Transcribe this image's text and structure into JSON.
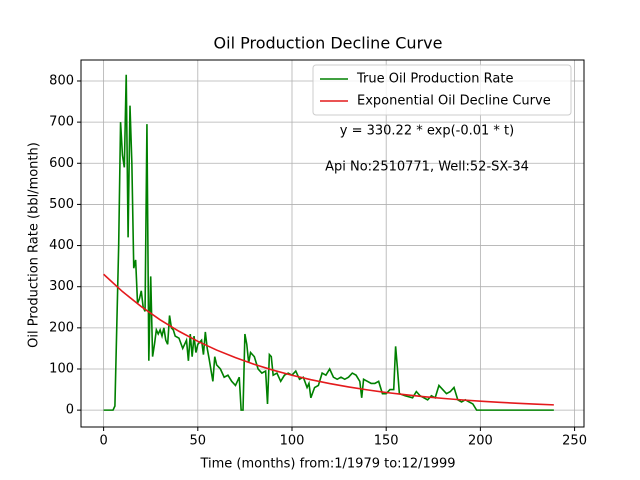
{
  "chart_data": {
    "type": "line",
    "title": "Oil Production Decline Curve",
    "xlabel": "Time (months) from:1/1979 to:12/1999",
    "ylabel": "Oil Production Rate (bbl/month)",
    "annotations": [
      "y = 330.22 * exp(-0.01 * t)",
      "Api No:2510771, Well:52-SX-34"
    ],
    "xlim": [
      -12,
      255
    ],
    "ylim": [
      -41,
      851
    ],
    "xticks": [
      0,
      50,
      100,
      150,
      200,
      250
    ],
    "yticks": [
      0,
      100,
      200,
      300,
      400,
      500,
      600,
      700,
      800
    ],
    "grid": true,
    "legend": "upper right",
    "series": [
      {
        "name": "True Oil Production Rate",
        "color": "#008000",
        "x": [
          0,
          5,
          6,
          8,
          9,
          10,
          11,
          12,
          13,
          14,
          15,
          16,
          17,
          18,
          19,
          20,
          21,
          22,
          23,
          24,
          25,
          26,
          27,
          28,
          29,
          30,
          31,
          32,
          33,
          34,
          35,
          36,
          37,
          38,
          40,
          42,
          44,
          45,
          46,
          47,
          48,
          49,
          50,
          52,
          53,
          54,
          55,
          56,
          58,
          59,
          60,
          62,
          64,
          66,
          68,
          70,
          72,
          73,
          74,
          75,
          76,
          77,
          78,
          80,
          82,
          84,
          86,
          87,
          88,
          89,
          90,
          92,
          94,
          96,
          98,
          100,
          102,
          104,
          106,
          108,
          109,
          110,
          112,
          114,
          116,
          118,
          120,
          122,
          124,
          126,
          128,
          130,
          132,
          134,
          136,
          137,
          138,
          140,
          142,
          144,
          146,
          148,
          150,
          152,
          154,
          155,
          156,
          157,
          160,
          164,
          166,
          168,
          170,
          172,
          174,
          176,
          178,
          180,
          182,
          184,
          186,
          188,
          190,
          192,
          194,
          196,
          198,
          239
        ],
        "values": [
          0,
          0,
          10,
          400,
          700,
          620,
          590,
          815,
          420,
          740,
          600,
          345,
          365,
          260,
          270,
          290,
          250,
          240,
          695,
          120,
          325,
          130,
          160,
          195,
          185,
          195,
          180,
          200,
          170,
          160,
          230,
          200,
          195,
          180,
          175,
          150,
          170,
          120,
          185,
          130,
          180,
          140,
          160,
          170,
          135,
          190,
          150,
          125,
          70,
          130,
          110,
          100,
          80,
          85,
          70,
          60,
          80,
          0,
          0,
          185,
          160,
          115,
          140,
          130,
          100,
          90,
          95,
          15,
          135,
          130,
          85,
          90,
          70,
          85,
          90,
          85,
          95,
          75,
          80,
          55,
          65,
          30,
          55,
          60,
          90,
          85,
          100,
          80,
          75,
          80,
          75,
          80,
          90,
          85,
          70,
          30,
          75,
          70,
          65,
          65,
          70,
          40,
          40,
          50,
          50,
          155,
          100,
          40,
          35,
          30,
          45,
          35,
          30,
          25,
          35,
          30,
          60,
          50,
          40,
          45,
          55,
          25,
          20,
          25,
          20,
          15,
          0,
          0
        ]
      },
      {
        "name": "Exponential Oil Decline Curve",
        "color": "#e41a1c",
        "x": [
          0,
          10,
          20,
          30,
          40,
          50,
          60,
          70,
          80,
          90,
          100,
          110,
          120,
          130,
          140,
          150,
          160,
          170,
          180,
          190,
          200,
          210,
          220,
          230,
          239
        ],
        "values": [
          330.2,
          288.2,
          251.6,
          219.6,
          191.7,
          167.3,
          146.0,
          127.5,
          111.2,
          97.1,
          84.8,
          74.0,
          64.6,
          56.4,
          49.2,
          42.9,
          37.5,
          32.7,
          28.6,
          24.9,
          21.8,
          19.0,
          16.6,
          14.5,
          12.8
        ]
      }
    ]
  }
}
